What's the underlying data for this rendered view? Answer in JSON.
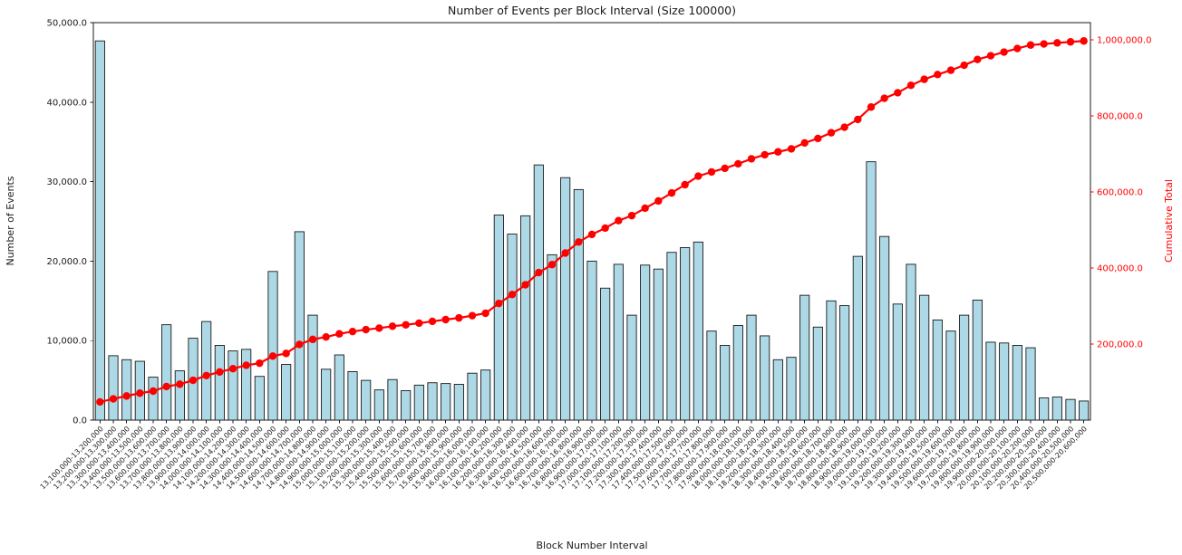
{
  "figure": {
    "background": "#ffffff"
  },
  "chart_data": {
    "type": "bar",
    "title": "Number of Events per Block Interval (Size 100000)",
    "xlabel": "Block Number Interval",
    "ylabel": "Number of Events",
    "y2label": "Cumulative Total",
    "grid": false,
    "legend": "none",
    "bar_color": "#add8e6",
    "bar_edge_color": "#1a1a1a",
    "line_color": "#ff0000",
    "text_color": "#1a1a1a",
    "categories": [
      "13,100,000-13,200,000",
      "13,200,000-13,300,000",
      "13,300,000-13,400,000",
      "13,400,000-13,500,000",
      "13,500,000-13,600,000",
      "13,600,000-13,700,000",
      "13,700,000-13,800,000",
      "13,800,000-13,900,000",
      "13,900,000-14,000,000",
      "14,000,000-14,100,000",
      "14,100,000-14,200,000",
      "14,200,000-14,300,000",
      "14,300,000-14,400,000",
      "14,400,000-14,500,000",
      "14,500,000-14,600,000",
      "14,600,000-14,700,000",
      "14,700,000-14,800,000",
      "14,800,000-14,900,000",
      "14,900,000-15,000,000",
      "15,000,000-15,100,000",
      "15,100,000-15,200,000",
      "15,200,000-15,300,000",
      "15,300,000-15,400,000",
      "15,400,000-15,500,000",
      "15,500,000-15,600,000",
      "15,600,000-15,700,000",
      "15,700,000-15,800,000",
      "15,800,000-15,900,000",
      "15,900,000-16,000,000",
      "16,000,000-16,100,000",
      "16,100,000-16,200,000",
      "16,200,000-16,300,000",
      "16,300,000-16,400,000",
      "16,400,000-16,500,000",
      "16,500,000-16,600,000",
      "16,600,000-16,700,000",
      "16,700,000-16,800,000",
      "16,800,000-16,900,000",
      "16,900,000-17,000,000",
      "17,000,000-17,100,000",
      "17,100,000-17,200,000",
      "17,200,000-17,300,000",
      "17,300,000-17,400,000",
      "17,400,000-17,500,000",
      "17,500,000-17,600,000",
      "17,600,000-17,700,000",
      "17,700,000-17,800,000",
      "17,800,000-17,900,000",
      "17,900,000-18,000,000",
      "18,000,000-18,100,000",
      "18,100,000-18,200,000",
      "18,200,000-18,300,000",
      "18,300,000-18,400,000",
      "18,400,000-18,500,000",
      "18,500,000-18,600,000",
      "18,600,000-18,700,000",
      "18,700,000-18,800,000",
      "18,800,000-18,900,000",
      "18,900,000-19,000,000",
      "19,000,000-19,100,000",
      "19,100,000-19,200,000",
      "19,200,000-19,300,000",
      "19,300,000-19,400,000",
      "19,400,000-19,500,000",
      "19,500,000-19,600,000",
      "19,600,000-19,700,000",
      "19,700,000-19,800,000",
      "19,800,000-19,900,000",
      "19,900,000-20,000,000",
      "20,000,000-20,100,000",
      "20,100,000-20,200,000",
      "20,200,000-20,300,000",
      "20,300,000-20,400,000",
      "20,400,000-20,500,000",
      "20,500,000-20,600,000"
    ],
    "series": [
      {
        "name": "Number of Events",
        "type": "bar",
        "values": [
          47700,
          8100,
          7600,
          7400,
          5400,
          12000,
          6200,
          10300,
          12400,
          9400,
          8700,
          8900,
          5500,
          18700,
          7000,
          23700,
          13200,
          6400,
          8200,
          6100,
          5000,
          3800,
          5100,
          3700,
          4400,
          4700,
          4600,
          4500,
          5900,
          6300,
          25800,
          23400,
          25700,
          32100,
          20800,
          30500,
          29000,
          20000,
          16600,
          19600,
          13200,
          19500,
          19000,
          21100,
          21700,
          22400,
          11200,
          9400,
          11900,
          13200,
          10600,
          7600,
          7900,
          15700,
          11700,
          15000,
          14400,
          20600,
          32500,
          23100,
          14600,
          19600,
          15700,
          12600,
          11200,
          13200,
          15100,
          9800,
          9700,
          9400,
          9100,
          2800,
          2900,
          2600,
          2400
        ]
      },
      {
        "name": "Cumulative Total",
        "type": "line",
        "values": [
          47700,
          55800,
          63400,
          70800,
          76200,
          88200,
          94400,
          104700,
          117100,
          126500,
          135200,
          144100,
          149600,
          168300,
          175300,
          199000,
          212200,
          218600,
          226800,
          232900,
          237900,
          241700,
          246800,
          250500,
          254900,
          259600,
          264200,
          268700,
          274600,
          280900,
          306700,
          330100,
          355800,
          387900,
          408700,
          439200,
          468200,
          488200,
          504800,
          524400,
          537600,
          557100,
          576100,
          597200,
          618900,
          641300,
          652500,
          661900,
          673800,
          687000,
          697600,
          705200,
          713100,
          728800,
          740500,
          755500,
          769900,
          790500,
          823000,
          846100,
          860700,
          880300,
          896000,
          908600,
          919800,
          933000,
          948100,
          957900,
          967600,
          977000,
          986100,
          988900,
          991800,
          994400,
          996800
        ]
      }
    ],
    "y_axis": {
      "lim": [
        0,
        50000
      ],
      "ticks": [
        0,
        10000,
        20000,
        30000,
        40000,
        50000
      ],
      "tick_labels": [
        "0.0",
        "10,000.0",
        "20,000.0",
        "30,000.0",
        "40,000.0",
        "50,000.0"
      ],
      "color": "#1a1a1a"
    },
    "y2_axis": {
      "lim": [
        0,
        1045000
      ],
      "ticks": [
        200000,
        400000,
        600000,
        800000,
        1000000
      ],
      "tick_labels": [
        "200,000.0",
        "400,000.0",
        "600,000.0",
        "800,000.0",
        "1,000,000.0"
      ],
      "color": "#ff0000"
    }
  }
}
